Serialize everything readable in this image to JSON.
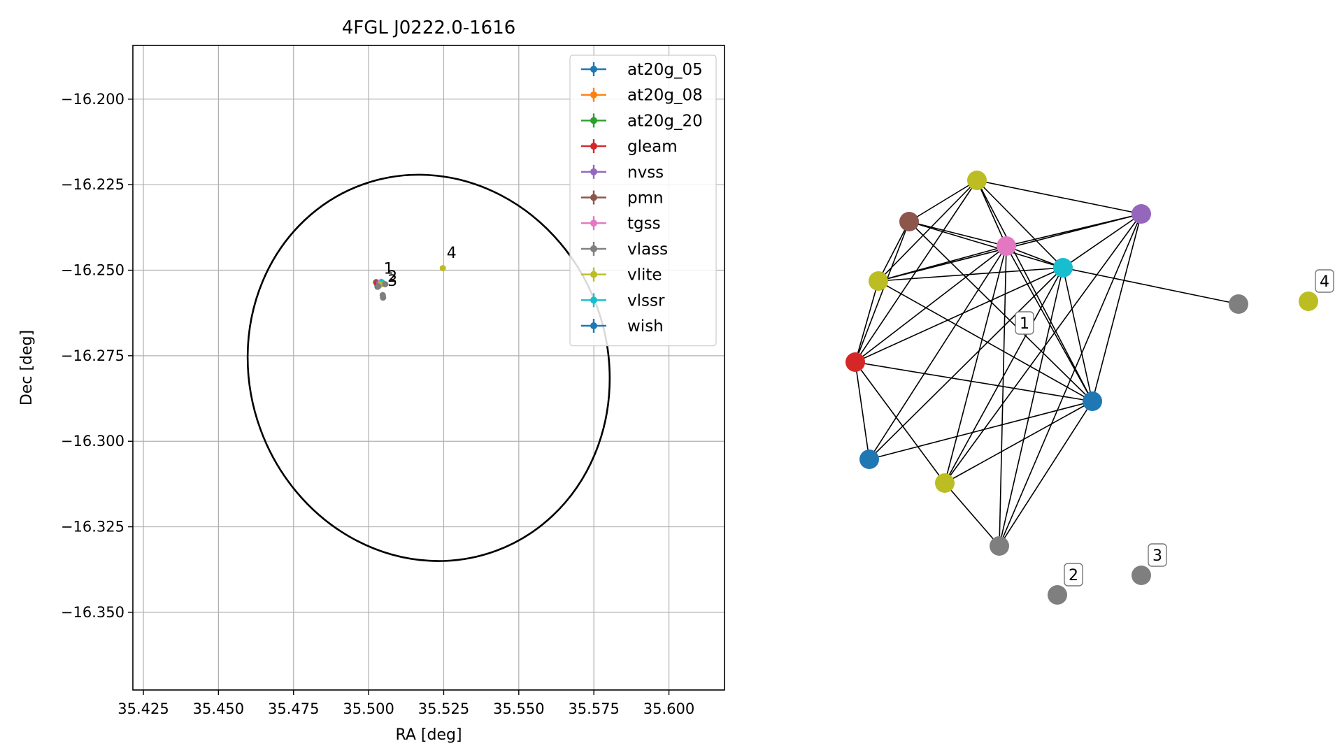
{
  "colors": {
    "at20g_05": "#1f77b4",
    "at20g_08": "#ff7f0e",
    "at20g_20": "#2ca02c",
    "gleam": "#d62728",
    "nvss": "#9467bd",
    "pmn": "#8c564b",
    "tgss": "#e377c2",
    "vlass": "#7f7f7f",
    "vlite": "#bcbd22",
    "vlssr": "#17becf",
    "wish": "#1f77b4"
  },
  "chart_data": [
    {
      "type": "scatter",
      "title": "4FGL J0222.0-1616",
      "xlabel": "RA [deg]",
      "ylabel": "Dec [deg]",
      "xlim": [
        35.4215,
        35.6185
      ],
      "ylim": [
        -16.3727,
        -16.1843
      ],
      "x_ticks": [
        35.425,
        35.45,
        35.475,
        35.5,
        35.525,
        35.55,
        35.575,
        35.6
      ],
      "x_tick_labels": [
        "35.425",
        "35.450",
        "35.475",
        "35.500",
        "35.525",
        "35.550",
        "35.575",
        "35.600"
      ],
      "y_ticks": [
        -16.2,
        -16.225,
        -16.25,
        -16.275,
        -16.3,
        -16.325,
        -16.35
      ],
      "y_tick_labels": [
        "−16.200",
        "−16.225",
        "−16.250",
        "−16.275",
        "−16.300",
        "−16.325",
        "−16.350"
      ],
      "grid": true,
      "legend_position": "top-right",
      "legend": [
        "at20g_05",
        "at20g_08",
        "at20g_20",
        "gleam",
        "nvss",
        "pmn",
        "tgss",
        "vlass",
        "vlite",
        "vlssr",
        "wish"
      ],
      "ellipse": {
        "ra": [
          35.4585,
          35.5815
        ],
        "dec": [
          -16.3343,
          -16.2228
        ]
      },
      "points": [
        {
          "series": "pmn",
          "ra": 35.5025,
          "dec": -16.2535
        },
        {
          "series": "gleam",
          "ra": 35.5028,
          "dec": -16.254
        },
        {
          "series": "nvss",
          "ra": 35.5035,
          "dec": -16.2538
        },
        {
          "series": "tgss",
          "ra": 35.5042,
          "dec": -16.2534
        },
        {
          "series": "vlssr",
          "ra": 35.5045,
          "dec": -16.2536
        },
        {
          "series": "vlite",
          "ra": 35.504,
          "dec": -16.2542
        },
        {
          "series": "at20g_05",
          "ra": 35.503,
          "dec": -16.2548
        },
        {
          "series": "wish",
          "ra": 35.503,
          "dec": -16.2548
        },
        {
          "series": "vlass",
          "ra": 35.5032,
          "dec": -16.2547
        },
        {
          "series": "vlass",
          "ra": 35.5055,
          "dec": -16.2541
        },
        {
          "series": "vlass",
          "ra": 35.5047,
          "dec": -16.2573
        },
        {
          "series": "vlass",
          "ra": 35.5048,
          "dec": -16.258
        },
        {
          "series": "vlite",
          "ra": 35.5247,
          "dec": -16.2494
        }
      ],
      "annotations": [
        {
          "label": "1",
          "ra": 35.505,
          "dec": -16.251
        },
        {
          "label": "2",
          "ra": 35.5063,
          "dec": -16.2534
        },
        {
          "label": "3",
          "ra": 35.5063,
          "dec": -16.2546
        },
        {
          "label": "4",
          "ra": 35.526,
          "dec": -16.2464
        }
      ]
    },
    {
      "type": "network",
      "nodes": [
        {
          "id": "vlite_a",
          "series": "vlite"
        },
        {
          "id": "nvss",
          "series": "nvss"
        },
        {
          "id": "pmn",
          "series": "pmn"
        },
        {
          "id": "tgss",
          "series": "tgss"
        },
        {
          "id": "vlssr",
          "series": "vlssr"
        },
        {
          "id": "vlite_b",
          "series": "vlite"
        },
        {
          "id": "gleam",
          "series": "gleam"
        },
        {
          "id": "at20g",
          "series": "at20g_05"
        },
        {
          "id": "wish",
          "series": "wish"
        },
        {
          "id": "vlite_c",
          "series": "vlite"
        },
        {
          "id": "vlass_a",
          "series": "vlass"
        },
        {
          "id": "vlass_b",
          "series": "vlass"
        },
        {
          "id": "vlite_4",
          "series": "vlite"
        },
        {
          "id": "vlass_2",
          "series": "vlass"
        },
        {
          "id": "vlass_3",
          "series": "vlass"
        }
      ],
      "edges": [
        [
          "vlite_a",
          "nvss"
        ],
        [
          "vlite_a",
          "pmn"
        ],
        [
          "vlite_a",
          "tgss"
        ],
        [
          "vlite_a",
          "vlssr"
        ],
        [
          "vlite_a",
          "vlite_b"
        ],
        [
          "vlite_a",
          "gleam"
        ],
        [
          "vlite_a",
          "wish"
        ],
        [
          "nvss",
          "tgss"
        ],
        [
          "nvss",
          "vlssr"
        ],
        [
          "nvss",
          "vlite_b"
        ],
        [
          "nvss",
          "wish"
        ],
        [
          "nvss",
          "vlite_c"
        ],
        [
          "nvss",
          "vlass_a"
        ],
        [
          "pmn",
          "tgss"
        ],
        [
          "pmn",
          "vlssr"
        ],
        [
          "pmn",
          "vlite_b"
        ],
        [
          "pmn",
          "gleam"
        ],
        [
          "pmn",
          "wish"
        ],
        [
          "tgss",
          "vlssr"
        ],
        [
          "tgss",
          "vlite_b"
        ],
        [
          "tgss",
          "gleam"
        ],
        [
          "tgss",
          "at20g"
        ],
        [
          "tgss",
          "wish"
        ],
        [
          "tgss",
          "vlite_c"
        ],
        [
          "tgss",
          "vlass_a"
        ],
        [
          "vlssr",
          "vlite_b"
        ],
        [
          "vlssr",
          "gleam"
        ],
        [
          "vlssr",
          "at20g"
        ],
        [
          "vlssr",
          "wish"
        ],
        [
          "vlssr",
          "vlite_c"
        ],
        [
          "vlssr",
          "vlass_a"
        ],
        [
          "vlssr",
          "vlass_b"
        ],
        [
          "vlite_b",
          "gleam"
        ],
        [
          "vlite_b",
          "wish"
        ],
        [
          "gleam",
          "at20g"
        ],
        [
          "gleam",
          "wish"
        ],
        [
          "gleam",
          "vlite_c"
        ],
        [
          "at20g",
          "wish"
        ],
        [
          "wish",
          "vlite_c"
        ],
        [
          "wish",
          "vlass_a"
        ],
        [
          "vlite_c",
          "vlass_a"
        ]
      ],
      "labels": [
        {
          "text": "1",
          "node": "free_1"
        },
        {
          "text": "2",
          "node": "vlass_2"
        },
        {
          "text": "3",
          "node": "vlass_3"
        },
        {
          "text": "4",
          "node": "vlite_4"
        }
      ]
    }
  ]
}
